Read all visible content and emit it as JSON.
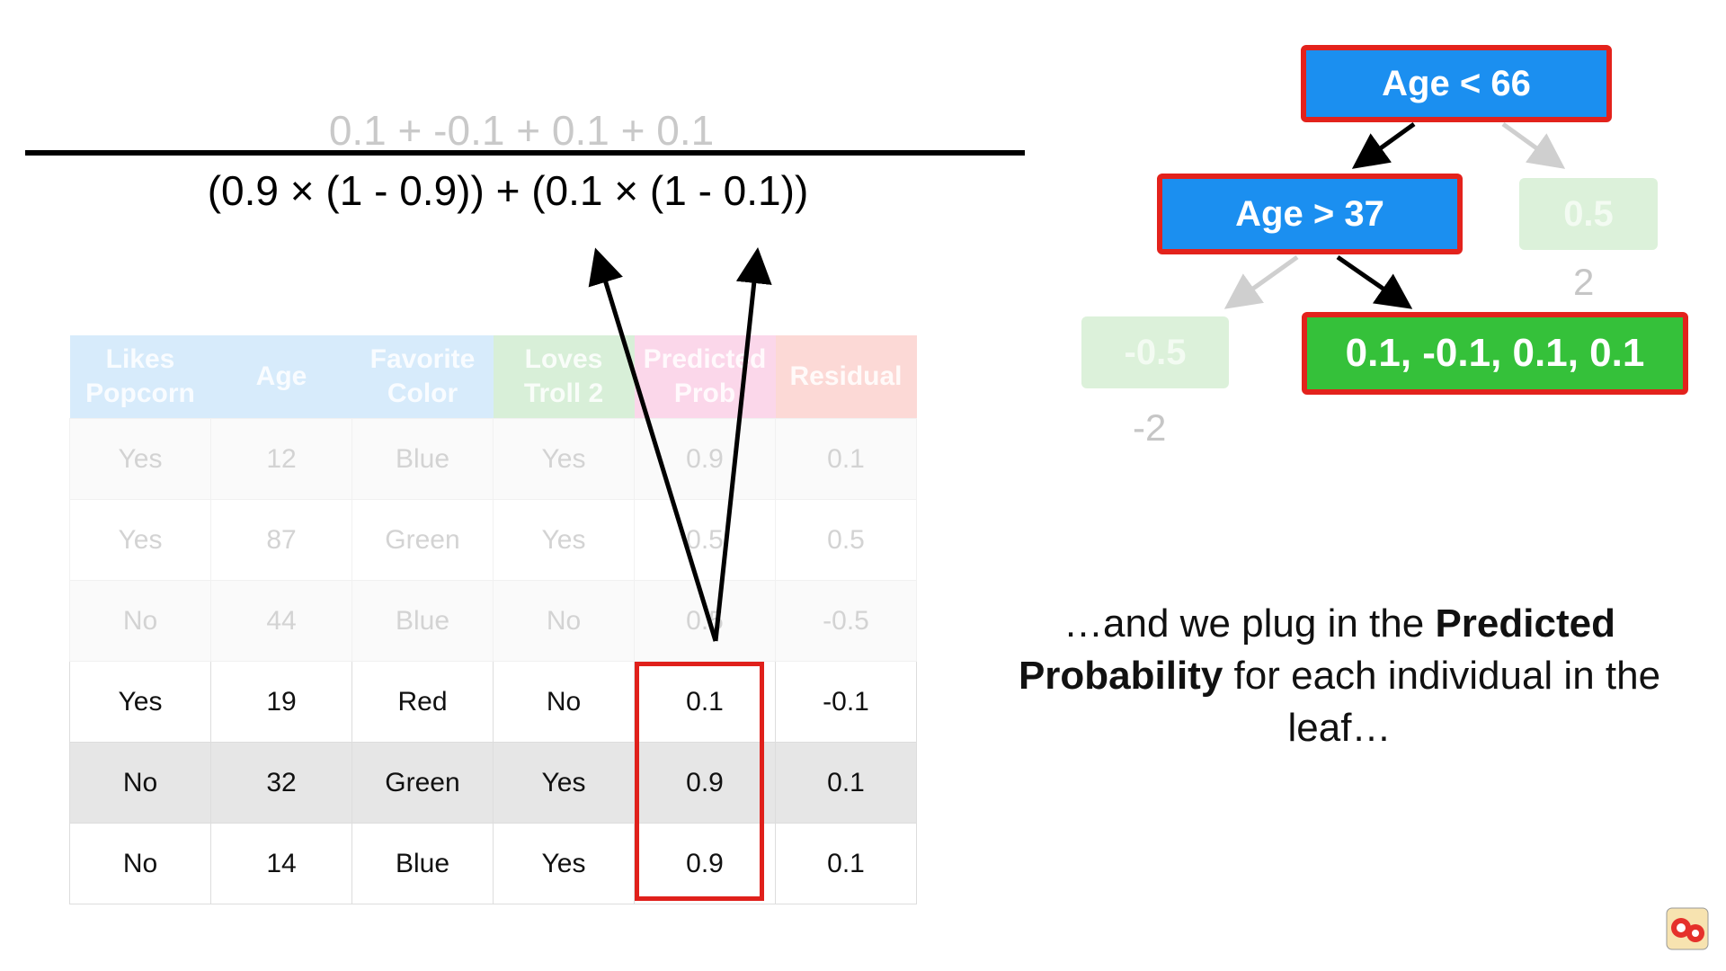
{
  "formula": {
    "numerator": "0.1 + -0.1 + 0.1 + 0.1",
    "denominator": "(0.9 × (1 - 0.9)) + (0.1 × (1 - 0.1))"
  },
  "table": {
    "headers": [
      {
        "line1": "Likes",
        "line2": "Popcorn"
      },
      {
        "line1": "Age",
        "line2": ""
      },
      {
        "line1": "Favorite",
        "line2": "Color"
      },
      {
        "line1": "Loves",
        "line2": "Troll 2"
      },
      {
        "line1": "Predicted",
        "line2": "Prob"
      },
      {
        "line1": "Residual",
        "line2": ""
      }
    ],
    "rows": [
      [
        "Yes",
        "12",
        "Blue",
        "Yes",
        "0.9",
        "0.1"
      ],
      [
        "Yes",
        "87",
        "Green",
        "Yes",
        "0.5",
        "0.5"
      ],
      [
        "No",
        "44",
        "Blue",
        "No",
        "0.5",
        "-0.5"
      ],
      [
        "Yes",
        "19",
        "Red",
        "No",
        "0.1",
        "-0.1"
      ],
      [
        "No",
        "32",
        "Green",
        "Yes",
        "0.9",
        "0.1"
      ],
      [
        "No",
        "14",
        "Blue",
        "Yes",
        "0.9",
        "0.1"
      ]
    ]
  },
  "tree": {
    "root": "Age < 66",
    "inner": "Age > 37",
    "leaf_right": "0.5",
    "leaf_right_value": "2",
    "leaf_left": "-0.5",
    "leaf_left_value": "-2",
    "leaf_active": "0.1, -0.1, 0.1, 0.1"
  },
  "caption": {
    "part1": "…and we plug in the ",
    "bold1": "Predicted",
    "bold2": "Probability",
    "part2": " for each individual in the leaf…"
  },
  "colors": {
    "decision_node": "#1b8ff0",
    "active_leaf": "#35c13a",
    "highlight": "#e0201b"
  }
}
